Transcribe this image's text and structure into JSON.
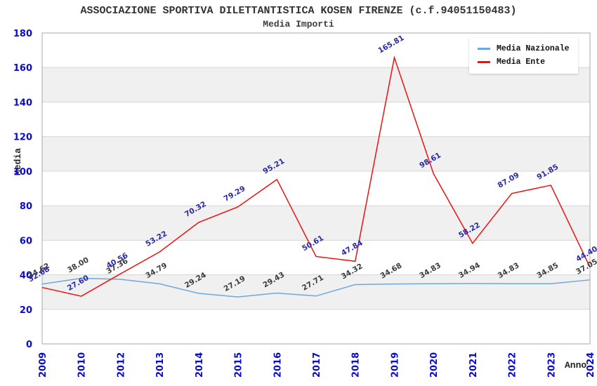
{
  "chart_data": {
    "type": "line",
    "title": "ASSOCIAZIONE SPORTIVA DILETTANTISTICA KOSEN FIRENZE (c.f.94051150483)",
    "subtitle": "Media Importi",
    "xlabel": "Anno",
    "ylabel": "Media",
    "ylim": [
      0,
      180
    ],
    "ytick_step": 20,
    "grid": true,
    "legend_position": "top-right",
    "categories": [
      "2009",
      "2010",
      "2012",
      "2013",
      "2014",
      "2015",
      "2016",
      "2017",
      "2018",
      "2019",
      "2020",
      "2021",
      "2022",
      "2023",
      "2024"
    ],
    "series": [
      {
        "name": "Media Nazionale",
        "color": "#6fa8dc",
        "label_color": "#3c3c3c",
        "values": [
          34.62,
          38.0,
          37.36,
          34.79,
          29.24,
          27.19,
          29.43,
          27.71,
          34.32,
          34.68,
          34.83,
          34.94,
          34.83,
          34.85,
          37.05
        ]
      },
      {
        "name": "Media Ente",
        "color": "#ee1111",
        "label_color": "#2a2aa4",
        "values": [
          32.68,
          27.6,
          40.56,
          53.22,
          70.32,
          79.29,
          95.21,
          50.61,
          47.84,
          165.81,
          98.61,
          58.22,
          87.09,
          91.85,
          44.4
        ]
      }
    ],
    "colors": {
      "band": "#f0f0f0",
      "grid": "#d6d6d6",
      "axis": "#a8a8a8",
      "tick": "#0b0bcc"
    }
  }
}
